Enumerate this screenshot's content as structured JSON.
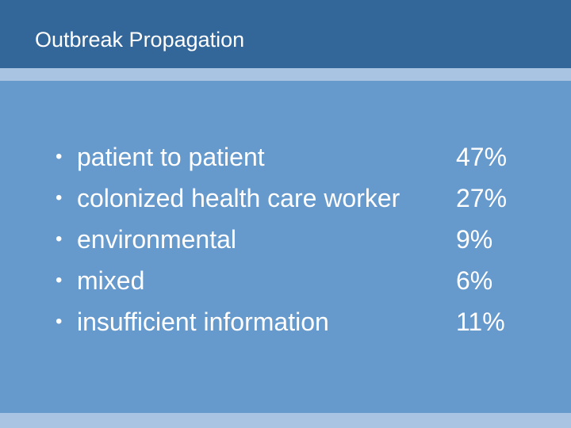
{
  "slide": {
    "title": "Outbreak Propagation",
    "bullet_char": "•",
    "items": [
      {
        "label": "patient to patient",
        "value": "47%"
      },
      {
        "label": "colonized health care worker",
        "value": "27%"
      },
      {
        "label": "environmental",
        "value": "9%"
      },
      {
        "label": "mixed",
        "value": "6%"
      },
      {
        "label": "insufficient information",
        "value": "11%"
      }
    ]
  },
  "colors": {
    "title_bar": "#336699",
    "background": "#6699cc",
    "stripe": "#a9c3e3",
    "text": "#ffffff"
  }
}
